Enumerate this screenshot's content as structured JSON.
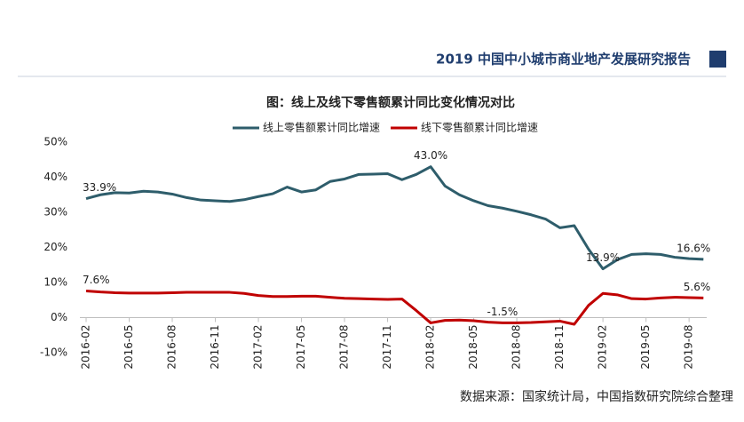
{
  "header": "2019 中国中小城市商业地产发展研究报告",
  "source": "数据来源：国家统计局，中国指数研究院综合整理",
  "chart_data": {
    "type": "line",
    "title": "图：线上及线下零售额累计同比变化情况对比",
    "categories": [
      "2016-02",
      null,
      null,
      "2016-05",
      null,
      null,
      "2016-08",
      null,
      null,
      "2016-11",
      null,
      null,
      "2017-02",
      null,
      null,
      "2017-05",
      null,
      null,
      "2017-08",
      null,
      null,
      "2017-11",
      null,
      null,
      "2018-02",
      null,
      null,
      "2018-05",
      null,
      null,
      "2018-08",
      null,
      null,
      "2018-11",
      null,
      null,
      "2019-02",
      null,
      null,
      "2019-05",
      null,
      null,
      "2019-08",
      null
    ],
    "series": [
      {
        "name": "线上零售额累计同比增速",
        "color": "#2e5d6b",
        "values": [
          33.9,
          35.0,
          35.6,
          35.5,
          36.0,
          35.8,
          35.2,
          34.2,
          33.5,
          33.3,
          33.1,
          33.6,
          34.5,
          35.3,
          37.2,
          35.8,
          36.4,
          38.8,
          39.5,
          40.8,
          40.9,
          41.0,
          39.3,
          40.8,
          43.0,
          37.5,
          35.0,
          33.3,
          31.9,
          31.2,
          30.3,
          29.3,
          28.1,
          25.6,
          26.2,
          19.5,
          13.9,
          16.5,
          18.0,
          18.2,
          18.0,
          17.2,
          16.8,
          16.6
        ],
        "value_labels": [
          "33.9%",
          null,
          null,
          null,
          null,
          null,
          null,
          null,
          null,
          null,
          null,
          null,
          null,
          null,
          null,
          null,
          null,
          null,
          null,
          null,
          null,
          null,
          null,
          null,
          "43.0%",
          null,
          null,
          null,
          null,
          null,
          null,
          null,
          null,
          null,
          null,
          null,
          "13.9%",
          null,
          null,
          null,
          null,
          null,
          null,
          "16.6%"
        ]
      },
      {
        "name": "线下零售额累计同比增速",
        "color": "#c00000",
        "values": [
          7.6,
          7.3,
          7.1,
          7.0,
          7.0,
          7.0,
          7.1,
          7.2,
          7.2,
          7.2,
          7.2,
          6.9,
          6.3,
          6.0,
          6.0,
          6.1,
          6.1,
          5.8,
          5.5,
          5.4,
          5.3,
          5.2,
          5.3,
          2.0,
          -1.5,
          -0.8,
          -0.7,
          -0.9,
          -1.3,
          -1.5,
          -1.5,
          -1.4,
          -1.2,
          -1.0,
          -1.9,
          3.5,
          6.9,
          6.5,
          5.4,
          5.3,
          5.6,
          5.8,
          5.7,
          5.6
        ],
        "value_labels": [
          "7.6%",
          null,
          null,
          null,
          null,
          null,
          null,
          null,
          null,
          null,
          null,
          null,
          null,
          null,
          null,
          null,
          null,
          null,
          null,
          null,
          null,
          null,
          null,
          null,
          null,
          null,
          null,
          null,
          null,
          "-1.5%",
          null,
          null,
          null,
          null,
          null,
          null,
          null,
          null,
          null,
          null,
          null,
          null,
          null,
          "5.6%"
        ]
      }
    ],
    "ylim": [
      -10,
      50
    ],
    "yticks": [
      {
        "value": -10,
        "label": "-10%"
      },
      {
        "value": 0,
        "label": "0%"
      },
      {
        "value": 10,
        "label": "10%"
      },
      {
        "value": 20,
        "label": "20%"
      },
      {
        "value": 30,
        "label": "30%"
      },
      {
        "value": 40,
        "label": "40%"
      },
      {
        "value": 50,
        "label": "50%"
      }
    ],
    "grid": false
  }
}
